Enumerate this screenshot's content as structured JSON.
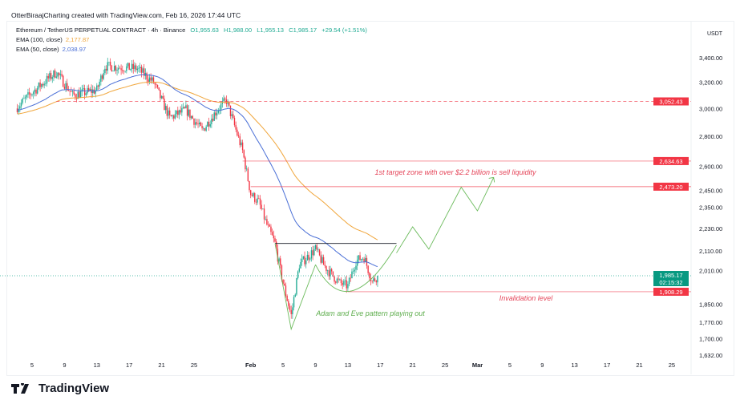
{
  "header": {
    "credit": "OtterBiraajCharting created with TradingView.com, Feb 16, 2026 17:44 UTC"
  },
  "legend": {
    "symbol": "Ethereum / TetherUS PERPETUAL CONTRACT · 4h · Binance",
    "o": "O1,955.63",
    "h": "H1,988.00",
    "l": "L1,955.13",
    "c": "C1,985.17",
    "chg": "+29.54 (+1.51%)",
    "ema100_label": "EMA (100, close)",
    "ema100_value": "2,177.87",
    "ema50_label": "EMA (50, close)",
    "ema50_value": "2,038.97"
  },
  "logo": "TradingView",
  "chart_data": {
    "type": "candlestick",
    "scale": "log",
    "currency": "USDT",
    "ylim": [
      1600,
      3500
    ],
    "y_ticks": [
      "3,400.00",
      "3,200.00",
      "3,000.00",
      "2,800.00",
      "2,600.00",
      "2,450.00",
      "2,350.00",
      "2,230.00",
      "2,110.00",
      "2,010.00",
      "1,850.00",
      "1,770.00",
      "1,700.00",
      "1,632.00"
    ],
    "x_ticks": [
      [
        "2026-01-05",
        "5"
      ],
      [
        "2026-01-09",
        "9"
      ],
      [
        "2026-01-13",
        "13"
      ],
      [
        "2026-01-17",
        "17"
      ],
      [
        "2026-01-21",
        "21"
      ],
      [
        "2026-01-25",
        "25"
      ],
      [
        "2026-02-01",
        "Feb"
      ],
      [
        "2026-02-05",
        "5"
      ],
      [
        "2026-02-09",
        "9"
      ],
      [
        "2026-02-13",
        "13"
      ],
      [
        "2026-02-17",
        "17"
      ],
      [
        "2026-02-21",
        "21"
      ],
      [
        "2026-02-25",
        "25"
      ],
      [
        "2026-03-01",
        "Mar"
      ],
      [
        "2026-03-05",
        "5"
      ],
      [
        "2026-03-09",
        "9"
      ],
      [
        "2026-03-13",
        "13"
      ],
      [
        "2026-03-17",
        "17"
      ],
      [
        "2026-03-21",
        "21"
      ],
      [
        "2026-03-25",
        "25"
      ]
    ],
    "price_path": [
      [
        "2026-01-03",
        3000
      ],
      [
        "2026-01-05",
        3120
      ],
      [
        "2026-01-07",
        3230
      ],
      [
        "2026-01-08",
        3280
      ],
      [
        "2026-01-10",
        3100
      ],
      [
        "2026-01-13",
        3140
      ],
      [
        "2026-01-14",
        3330
      ],
      [
        "2026-01-16",
        3320
      ],
      [
        "2026-01-18",
        3310
      ],
      [
        "2026-01-20",
        3200
      ],
      [
        "2026-01-22",
        2930
      ],
      [
        "2026-01-24",
        2990
      ],
      [
        "2026-01-26",
        2840
      ],
      [
        "2026-01-28",
        3000
      ],
      [
        "2026-01-29",
        3060
      ],
      [
        "2026-01-31",
        2700
      ],
      [
        "2026-02-01",
        2430
      ],
      [
        "2026-02-02",
        2380
      ],
      [
        "2026-02-03",
        2250
      ],
      [
        "2026-02-04",
        2150
      ],
      [
        "2026-02-05",
        1950
      ],
      [
        "2026-02-06",
        1800
      ],
      [
        "2026-02-07",
        2040
      ],
      [
        "2026-02-09",
        2120
      ],
      [
        "2026-02-10",
        2040
      ],
      [
        "2026-02-11",
        1990
      ],
      [
        "2026-02-12",
        1950
      ],
      [
        "2026-02-13",
        1935
      ],
      [
        "2026-02-14",
        2060
      ],
      [
        "2026-02-15",
        2080
      ],
      [
        "2026-02-16",
        1955
      ],
      [
        "2026-02-16T16:00",
        1985.17
      ]
    ],
    "ema100_color": "#f0a53a",
    "ema50_color": "#4a6fd6",
    "up_color": "#22ab94",
    "down_color": "#f23645",
    "current_price": {
      "value": 1985.17,
      "label": "1,985.17",
      "countdown": "02:15:32"
    },
    "levels": [
      {
        "price": 3052.43,
        "label": "3,052.43",
        "from": "2026-01-08",
        "style": "dashed"
      },
      {
        "price": 2634.63,
        "label": "2,634.63",
        "from": "2026-01-31",
        "style": "solid"
      },
      {
        "price": 2473.2,
        "label": "2,473.20",
        "from": "2026-02-01",
        "style": "solid"
      },
      {
        "price": 1908.29,
        "label": "1,908.29",
        "from": "2026-02-13",
        "style": "solid"
      }
    ],
    "neckline": {
      "price": 2150,
      "from": "2026-02-04",
      "to": "2026-02-19"
    },
    "adam": [
      [
        "2026-02-04",
        2150
      ],
      [
        "2026-02-06",
        1740
      ],
      [
        "2026-02-09",
        2040
      ]
    ],
    "eve": [
      [
        "2026-02-09",
        2040
      ],
      [
        "2026-02-13",
        1895
      ],
      [
        "2026-02-19",
        2140
      ]
    ],
    "projection": [
      [
        "2026-02-19",
        2100
      ],
      [
        "2026-02-21",
        2240
      ],
      [
        "2026-02-23",
        2120
      ],
      [
        "2026-02-27",
        2470
      ],
      [
        "2026-03-01",
        2330
      ],
      [
        "2026-03-03",
        2530
      ]
    ],
    "annotations": {
      "target": "1st target zone with over $2.2 billion is sell liquidity",
      "invalidation": "Invalidation level",
      "pattern": "Adam and Eve pattern playing out"
    }
  }
}
